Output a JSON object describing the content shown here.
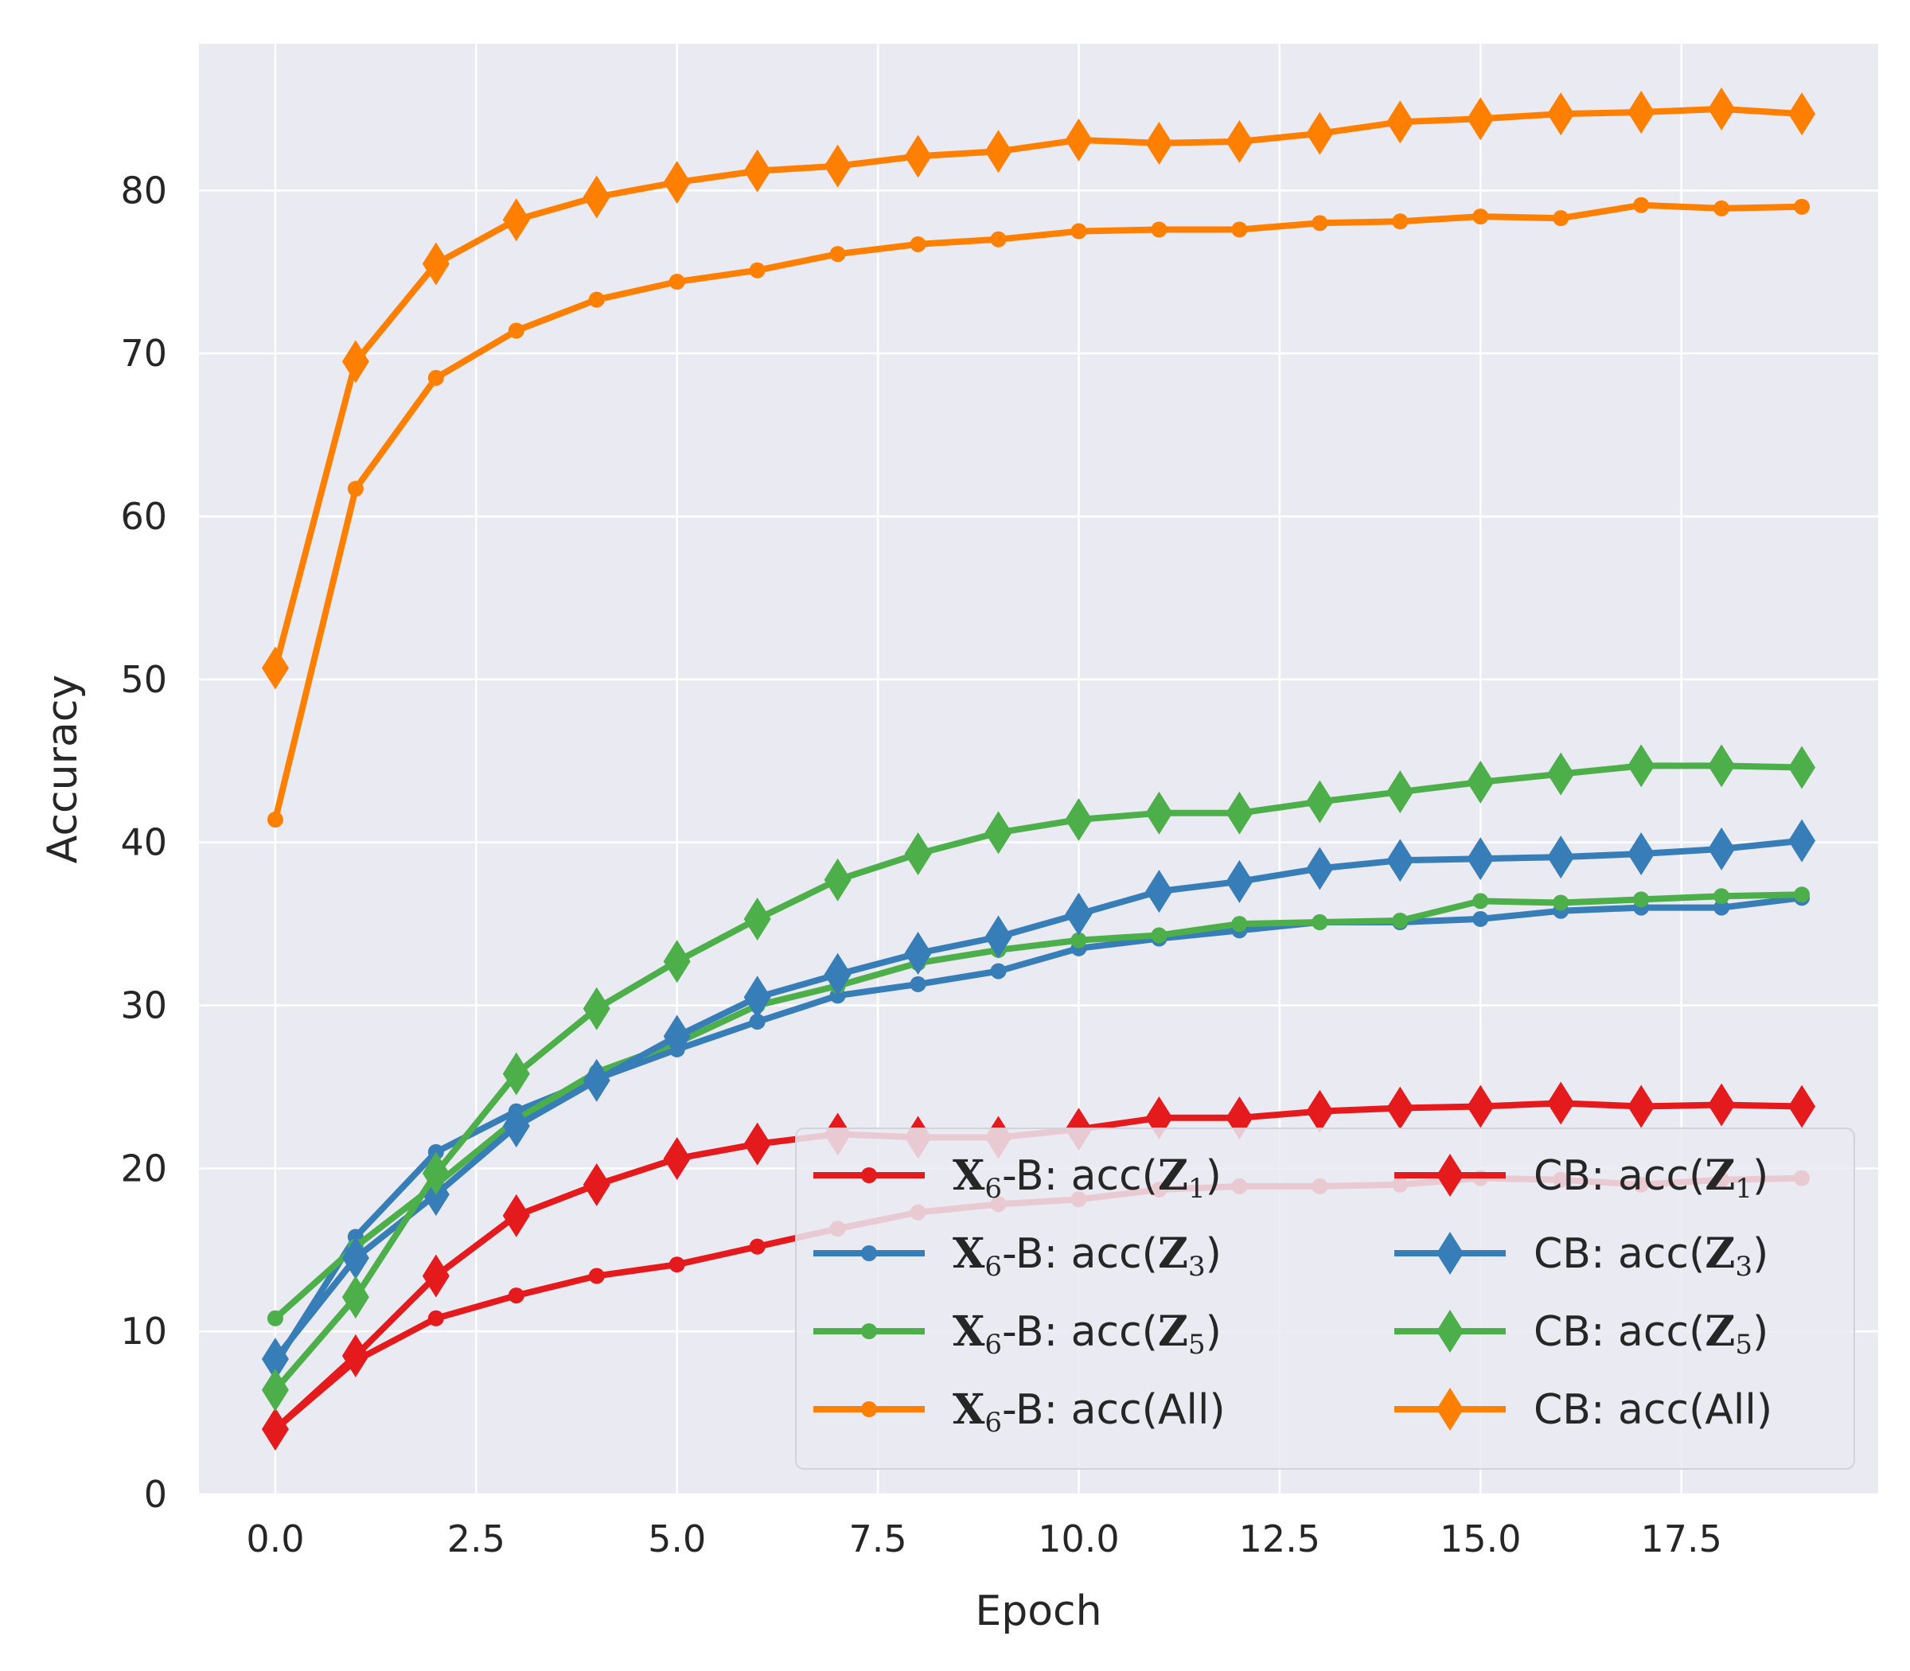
{
  "chart_data": {
    "type": "line",
    "xlabel": "Epoch",
    "ylabel": "Accuracy",
    "xlim": [
      -0.95,
      19.95
    ],
    "ylim": [
      0,
      89
    ],
    "xticks": [
      0.0,
      2.5,
      5.0,
      7.5,
      10.0,
      12.5,
      15.0,
      17.5
    ],
    "xtick_labels": [
      "0.0",
      "2.5",
      "5.0",
      "7.5",
      "10.0",
      "12.5",
      "15.0",
      "17.5"
    ],
    "yticks": [
      0,
      10,
      20,
      30,
      40,
      50,
      60,
      70,
      80
    ],
    "ytick_labels": [
      "0",
      "10",
      "20",
      "30",
      "40",
      "50",
      "60",
      "70",
      "80"
    ],
    "grid": true,
    "legend_position": "bottom-right",
    "legend_columns": 2,
    "x": [
      0,
      1,
      2,
      3,
      4,
      5,
      6,
      7,
      8,
      9,
      10,
      11,
      12,
      13,
      14,
      15,
      16,
      17,
      18,
      19
    ],
    "series": [
      {
        "name": "X6-B: acc(Z1)",
        "prefix": "X",
        "prefix_sub": "6",
        "label": "-B: acc(",
        "var": "Z",
        "var_sub": "1",
        "suffix": ")",
        "marker": "dot",
        "color": "#e41a1c",
        "values": [
          4.0,
          8.2,
          10.8,
          12.2,
          13.4,
          14.1,
          15.2,
          16.3,
          17.3,
          17.8,
          18.1,
          18.7,
          18.9,
          18.9,
          19.0,
          19.4,
          19.3,
          19.0,
          19.3,
          19.4
        ]
      },
      {
        "name": "X6-B: acc(Z3)",
        "prefix": "X",
        "prefix_sub": "6",
        "label": "-B: acc(",
        "var": "Z",
        "var_sub": "3",
        "suffix": ")",
        "marker": "dot",
        "color": "#377eb8",
        "values": [
          8.0,
          15.8,
          21.0,
          23.5,
          25.5,
          27.3,
          29.0,
          30.6,
          31.3,
          32.1,
          33.5,
          34.1,
          34.6,
          35.1,
          35.1,
          35.3,
          35.8,
          36.0,
          36.0,
          36.6
        ]
      },
      {
        "name": "X6-B: acc(Z5)",
        "prefix": "X",
        "prefix_sub": "6",
        "label": "-B: acc(",
        "var": "Z",
        "var_sub": "5",
        "suffix": ")",
        "marker": "dot",
        "color": "#4daf4a",
        "values": [
          10.8,
          15.2,
          19.0,
          23.0,
          25.9,
          27.7,
          30.0,
          31.2,
          32.6,
          33.4,
          34.0,
          34.3,
          35.0,
          35.1,
          35.2,
          36.4,
          36.3,
          36.5,
          36.7,
          36.8
        ]
      },
      {
        "name": "X6-B: acc(All)",
        "prefix": "X",
        "prefix_sub": "6",
        "label": "-B: acc(All)",
        "var": "",
        "var_sub": "",
        "suffix": "",
        "marker": "dot",
        "color": "#ff7f00",
        "values": [
          41.4,
          61.7,
          68.5,
          71.4,
          73.3,
          74.4,
          75.1,
          76.1,
          76.7,
          77.0,
          77.5,
          77.6,
          77.6,
          78.0,
          78.1,
          78.4,
          78.3,
          79.1,
          78.9,
          79.0
        ]
      },
      {
        "name": "CB: acc(Z1)",
        "prefix": "",
        "prefix_sub": "",
        "label": "CB: acc(",
        "var": "Z",
        "var_sub": "1",
        "suffix": ")",
        "marker": "diamond",
        "color": "#e41a1c",
        "values": [
          4.0,
          8.5,
          13.4,
          17.1,
          19.0,
          20.6,
          21.5,
          22.1,
          21.9,
          21.9,
          22.4,
          23.1,
          23.1,
          23.5,
          23.7,
          23.8,
          24.0,
          23.8,
          23.9,
          23.8
        ]
      },
      {
        "name": "CB: acc(Z3)",
        "prefix": "",
        "prefix_sub": "",
        "label": "CB: acc(",
        "var": "Z",
        "var_sub": "3",
        "suffix": ")",
        "marker": "diamond",
        "color": "#377eb8",
        "values": [
          8.3,
          14.5,
          18.4,
          22.6,
          25.4,
          28.1,
          30.5,
          31.9,
          33.2,
          34.2,
          35.6,
          37.0,
          37.6,
          38.4,
          38.9,
          39.0,
          39.1,
          39.3,
          39.6,
          40.1
        ]
      },
      {
        "name": "CB: acc(Z5)",
        "prefix": "",
        "prefix_sub": "",
        "label": "CB: acc(",
        "var": "Z",
        "var_sub": "5",
        "suffix": ")",
        "marker": "diamond",
        "color": "#4daf4a",
        "values": [
          6.4,
          12.1,
          19.7,
          25.8,
          29.8,
          32.7,
          35.3,
          37.7,
          39.3,
          40.6,
          41.4,
          41.8,
          41.8,
          42.5,
          43.1,
          43.7,
          44.2,
          44.7,
          44.7,
          44.6
        ]
      },
      {
        "name": "CB: acc(All)",
        "prefix": "",
        "prefix_sub": "",
        "label": "CB: acc(All)",
        "var": "",
        "var_sub": "",
        "suffix": "",
        "marker": "diamond",
        "color": "#ff7f00",
        "values": [
          50.7,
          69.5,
          75.5,
          78.2,
          79.6,
          80.5,
          81.2,
          81.5,
          82.1,
          82.4,
          83.1,
          82.9,
          83.0,
          83.5,
          84.2,
          84.4,
          84.7,
          84.8,
          85.0,
          84.7
        ]
      }
    ]
  }
}
